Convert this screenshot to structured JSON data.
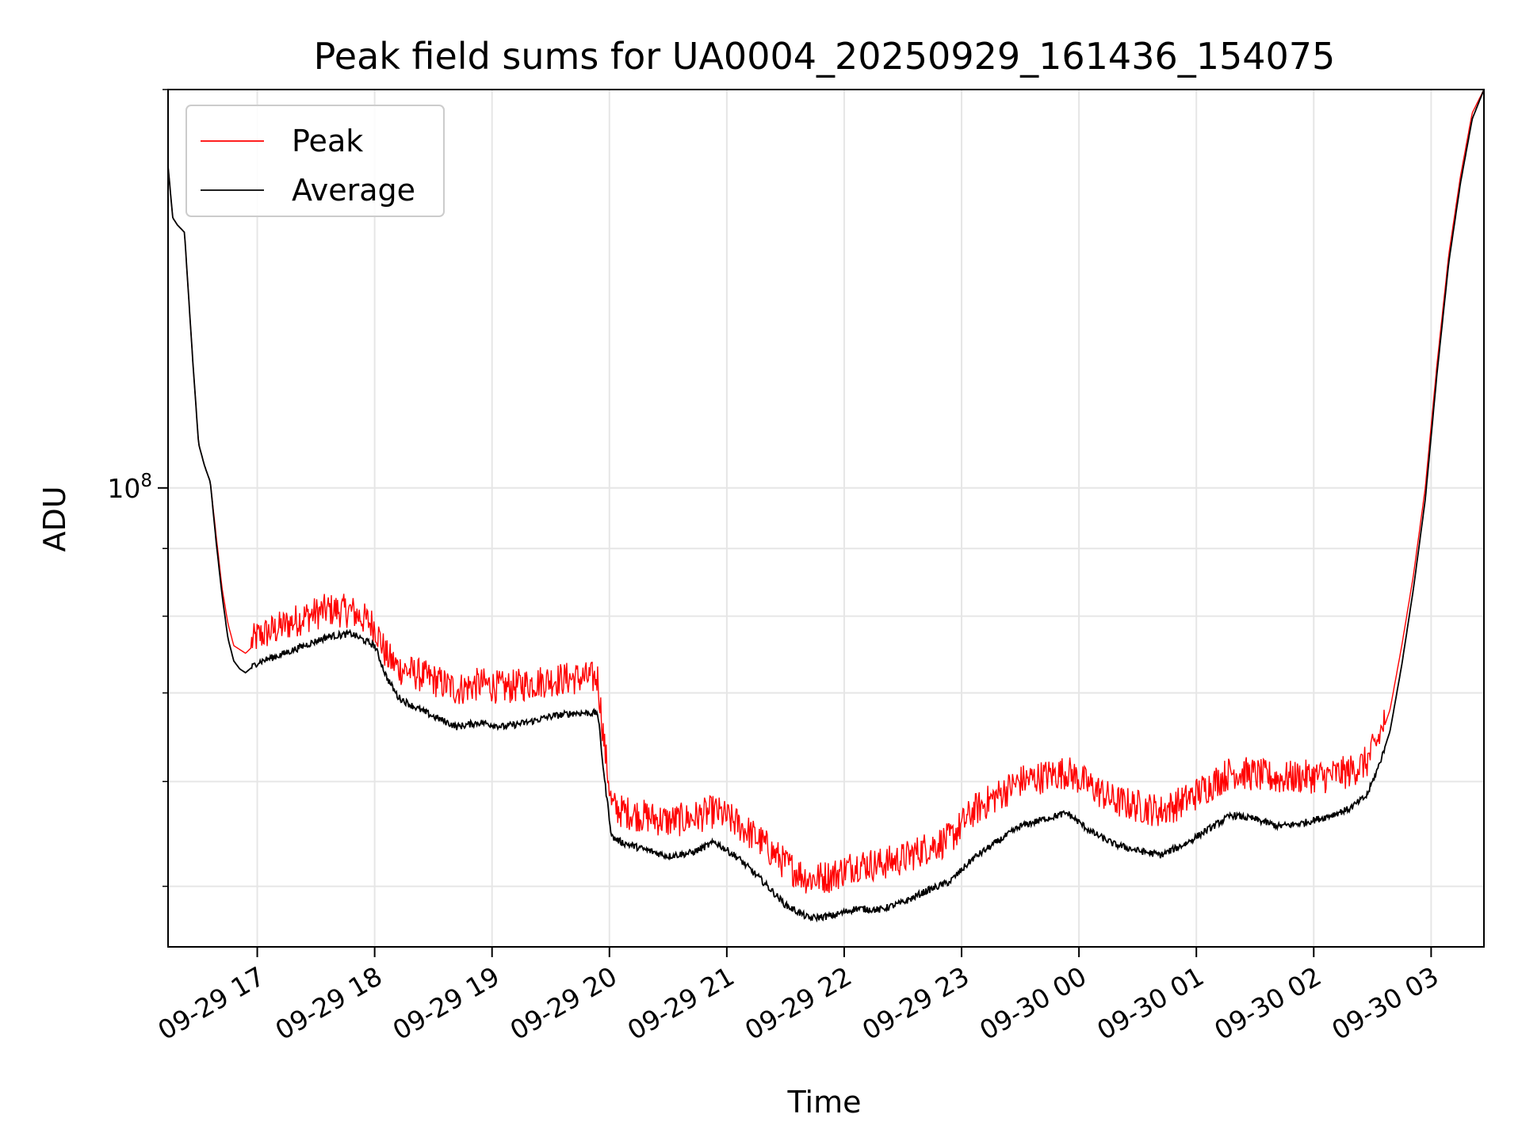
{
  "chart_data": {
    "type": "line",
    "title": "Peak field sums for UA0004_20250929_161436_154075",
    "xlabel": "Time",
    "ylabel": "ADU",
    "y_scale": "log",
    "ylim": [
      45000000,
      200000000
    ],
    "xlim_hours": [
      16.24,
      27.45
    ],
    "grid": true,
    "legend_position": "upper-left",
    "x_ticks": [
      {
        "hour": 17,
        "label": "09-29 17"
      },
      {
        "hour": 18,
        "label": "09-29 18"
      },
      {
        "hour": 19,
        "label": "09-29 19"
      },
      {
        "hour": 20,
        "label": "09-29 20"
      },
      {
        "hour": 21,
        "label": "09-29 21"
      },
      {
        "hour": 22,
        "label": "09-29 22"
      },
      {
        "hour": 23,
        "label": "09-29 23"
      },
      {
        "hour": 24,
        "label": "09-30 00"
      },
      {
        "hour": 25,
        "label": "09-30 01"
      },
      {
        "hour": 26,
        "label": "09-30 02"
      },
      {
        "hour": 27,
        "label": "09-30 03"
      }
    ],
    "y_major_ticks": [
      {
        "value": 100000000,
        "base": "10",
        "exponent": "8"
      }
    ],
    "y_minor_ticks": [
      50000000,
      60000000,
      70000000,
      80000000,
      90000000,
      200000000
    ],
    "series": [
      {
        "name": "Peak",
        "color": "#ff0000",
        "hours": [
          16.24,
          16.28,
          16.32,
          16.38,
          16.45,
          16.5,
          16.55,
          16.6,
          16.65,
          16.7,
          16.75,
          16.8,
          16.85,
          16.9,
          17.0,
          17.2,
          17.4,
          17.6,
          17.8,
          18.0,
          18.1,
          18.2,
          18.3,
          18.5,
          18.7,
          18.9,
          19.1,
          19.3,
          19.5,
          19.7,
          19.9,
          19.96,
          20.02,
          20.1,
          20.3,
          20.5,
          20.7,
          20.9,
          21.1,
          21.3,
          21.5,
          21.7,
          21.9,
          22.1,
          22.3,
          22.5,
          22.7,
          22.9,
          23.1,
          23.3,
          23.5,
          23.7,
          23.9,
          24.1,
          24.3,
          24.5,
          24.7,
          24.9,
          25.1,
          25.3,
          25.5,
          25.7,
          25.9,
          26.1,
          26.3,
          26.45,
          26.55,
          26.65,
          26.75,
          26.85,
          26.95,
          27.05,
          27.15,
          27.25,
          27.35,
          27.45
        ],
        "values": [
          175000000,
          160000000,
          158000000,
          156000000,
          125000000,
          108000000,
          104000000,
          101000000,
          92000000,
          84000000,
          79000000,
          76000000,
          75500000,
          75000000,
          76500000,
          77800000,
          79200000,
          80200000,
          80000000,
          78000000,
          74000000,
          72500000,
          72000000,
          71000000,
          69800000,
          70500000,
          70000000,
          70500000,
          71000000,
          71200000,
          71200000,
          63000000,
          57000000,
          56500000,
          56000000,
          55500000,
          55800000,
          56500000,
          55200000,
          53500000,
          51500000,
          50200000,
          50500000,
          51500000,
          51500000,
          52000000,
          53000000,
          53800000,
          56500000,
          58000000,
          59500000,
          60000000,
          60500000,
          59000000,
          57500000,
          57000000,
          56500000,
          57500000,
          59000000,
          60500000,
          60200000,
          59800000,
          60000000,
          60000000,
          60500000,
          61500000,
          64000000,
          68000000,
          76000000,
          86000000,
          100000000,
          124000000,
          150000000,
          172000000,
          192000000,
          200000000
        ]
      },
      {
        "name": "Average",
        "color": "#000000",
        "hours": [
          16.24,
          16.28,
          16.32,
          16.38,
          16.45,
          16.5,
          16.55,
          16.6,
          16.65,
          16.7,
          16.75,
          16.8,
          16.85,
          16.9,
          17.0,
          17.2,
          17.4,
          17.6,
          17.8,
          18.0,
          18.1,
          18.2,
          18.3,
          18.5,
          18.7,
          18.9,
          19.1,
          19.3,
          19.5,
          19.7,
          19.9,
          19.96,
          20.02,
          20.1,
          20.3,
          20.5,
          20.7,
          20.9,
          21.1,
          21.3,
          21.5,
          21.7,
          21.9,
          22.1,
          22.3,
          22.5,
          22.7,
          22.9,
          23.1,
          23.3,
          23.5,
          23.7,
          23.9,
          24.1,
          24.3,
          24.5,
          24.7,
          24.9,
          25.1,
          25.3,
          25.5,
          25.7,
          25.9,
          26.1,
          26.3,
          26.45,
          26.55,
          26.65,
          26.75,
          26.85,
          26.95,
          27.05,
          27.15,
          27.25,
          27.35,
          27.45
        ],
        "values": [
          175000000,
          160000000,
          158000000,
          156000000,
          125000000,
          108000000,
          104000000,
          101000000,
          91000000,
          83000000,
          77000000,
          74000000,
          73000000,
          72500000,
          73800000,
          74800000,
          76000000,
          77200000,
          77600000,
          76000000,
          72000000,
          69500000,
          68600000,
          67200000,
          66000000,
          66500000,
          66000000,
          66500000,
          67200000,
          67600000,
          67600000,
          60000000,
          54500000,
          54000000,
          53300000,
          52700000,
          53000000,
          54000000,
          52500000,
          50500000,
          48400000,
          47300000,
          47500000,
          48100000,
          48000000,
          48600000,
          49600000,
          50400000,
          52500000,
          54000000,
          55500000,
          56200000,
          56800000,
          55000000,
          53800000,
          53200000,
          52800000,
          53800000,
          55200000,
          56600000,
          56200000,
          55500000,
          55800000,
          56400000,
          57200000,
          58500000,
          61500000,
          65500000,
          73500000,
          84000000,
          98000000,
          122000000,
          148000000,
          170000000,
          190000000,
          200000000
        ]
      }
    ]
  }
}
